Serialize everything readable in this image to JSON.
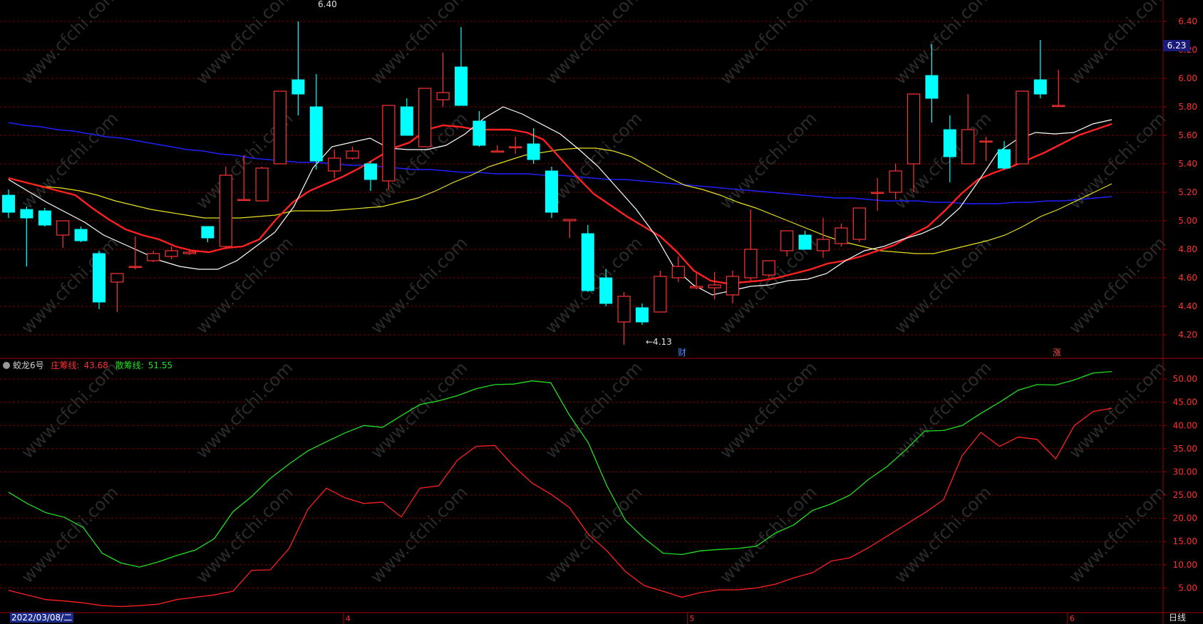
{
  "indicator": {
    "name": "蛟龙6号",
    "zhuang_label": "庄筹线:",
    "zhuang_value": "43.68",
    "san_label": "散筹线:",
    "san_value": "51.55"
  },
  "footer": {
    "date": "2022/03/08/二",
    "period": "日线"
  },
  "price_axis_ticks": [
    "6.40",
    "6.20",
    "6.00",
    "5.80",
    "5.60",
    "5.40",
    "5.20",
    "5.00",
    "4.80",
    "4.60",
    "4.40",
    "4.20"
  ],
  "indicator_axis_ticks": [
    "50.00",
    "45.00",
    "40.00",
    "35.00",
    "30.00",
    "25.00",
    "20.00",
    "15.00",
    "10.00",
    "5.00"
  ],
  "current_price": "6.23",
  "annotations": {
    "high_label": "6.40",
    "low_label": "←4.13",
    "marker_cai": "财",
    "marker_zhang": "涨"
  },
  "month_labels": [
    "3",
    "4",
    "5",
    "6"
  ],
  "colors": {
    "up": "#ff3232",
    "down": "#00ffff",
    "ma5": "#ffffff",
    "ma10": "#ff2020",
    "ma20": "#e8e020",
    "ma60": "#2020ff",
    "zhuang": "#ff2020",
    "san": "#20e020",
    "grid": "#7a0000"
  },
  "chart_data": [
    {
      "type": "candlestick",
      "title": "",
      "ylim": [
        4.05,
        6.45
      ],
      "candles": [
        {
          "o": 5.18,
          "h": 5.22,
          "l": 5.02,
          "c": 5.06
        },
        {
          "o": 5.08,
          "h": 5.1,
          "l": 4.68,
          "c": 5.02
        },
        {
          "o": 5.07,
          "h": 5.09,
          "l": 4.96,
          "c": 4.97
        },
        {
          "o": 4.9,
          "h": 5.0,
          "l": 4.81,
          "c": 5.0
        },
        {
          "o": 4.94,
          "h": 4.96,
          "l": 4.85,
          "c": 4.86
        },
        {
          "o": 4.77,
          "h": 4.79,
          "l": 4.38,
          "c": 4.43
        },
        {
          "o": 4.57,
          "h": 4.63,
          "l": 4.36,
          "c": 4.63
        },
        {
          "o": 4.68,
          "h": 4.89,
          "l": 4.66,
          "c": 4.68
        },
        {
          "o": 4.72,
          "h": 4.79,
          "l": 4.71,
          "c": 4.77
        },
        {
          "o": 4.75,
          "h": 4.82,
          "l": 4.73,
          "c": 4.79
        },
        {
          "o": 4.77,
          "h": 4.8,
          "l": 4.76,
          "c": 4.78
        },
        {
          "o": 4.96,
          "h": 4.96,
          "l": 4.85,
          "c": 4.88
        },
        {
          "o": 4.82,
          "h": 5.38,
          "l": 4.8,
          "c": 5.32
        },
        {
          "o": 5.15,
          "h": 5.46,
          "l": 5.15,
          "c": 5.15
        },
        {
          "o": 5.14,
          "h": 5.38,
          "l": 5.14,
          "c": 5.37
        },
        {
          "o": 5.4,
          "h": 5.91,
          "l": 5.4,
          "c": 5.91
        },
        {
          "o": 5.99,
          "h": 6.4,
          "l": 5.74,
          "c": 5.89
        },
        {
          "o": 5.8,
          "h": 6.03,
          "l": 5.36,
          "c": 5.42
        },
        {
          "o": 5.35,
          "h": 5.5,
          "l": 5.3,
          "c": 5.44
        },
        {
          "o": 5.44,
          "h": 5.52,
          "l": 5.43,
          "c": 5.49
        },
        {
          "o": 5.4,
          "h": 5.42,
          "l": 5.21,
          "c": 5.29
        },
        {
          "o": 5.28,
          "h": 5.81,
          "l": 5.22,
          "c": 5.81
        },
        {
          "o": 5.8,
          "h": 5.86,
          "l": 5.6,
          "c": 5.6
        },
        {
          "o": 5.52,
          "h": 5.93,
          "l": 5.52,
          "c": 5.93
        },
        {
          "o": 5.85,
          "h": 6.18,
          "l": 5.8,
          "c": 5.9
        },
        {
          "o": 6.08,
          "h": 6.36,
          "l": 5.81,
          "c": 5.81
        },
        {
          "o": 5.7,
          "h": 5.77,
          "l": 5.52,
          "c": 5.53
        },
        {
          "o": 5.49,
          "h": 5.53,
          "l": 5.48,
          "c": 5.49
        },
        {
          "o": 5.52,
          "h": 5.59,
          "l": 5.47,
          "c": 5.52
        },
        {
          "o": 5.54,
          "h": 5.65,
          "l": 5.4,
          "c": 5.43
        },
        {
          "o": 5.35,
          "h": 5.38,
          "l": 5.02,
          "c": 5.06
        },
        {
          "o": 5.0,
          "h": 5.01,
          "l": 4.88,
          "c": 5.01
        },
        {
          "o": 4.91,
          "h": 4.97,
          "l": 4.5,
          "c": 4.51
        },
        {
          "o": 4.6,
          "h": 4.66,
          "l": 4.4,
          "c": 4.42
        },
        {
          "o": 4.29,
          "h": 4.5,
          "l": 4.13,
          "c": 4.47
        },
        {
          "o": 4.39,
          "h": 4.42,
          "l": 4.27,
          "c": 4.29
        },
        {
          "o": 4.36,
          "h": 4.65,
          "l": 4.36,
          "c": 4.61
        },
        {
          "o": 4.6,
          "h": 4.75,
          "l": 4.57,
          "c": 4.68
        },
        {
          "o": 4.53,
          "h": 4.64,
          "l": 4.52,
          "c": 4.54
        },
        {
          "o": 4.53,
          "h": 4.64,
          "l": 4.45,
          "c": 4.55
        },
        {
          "o": 4.48,
          "h": 4.65,
          "l": 4.42,
          "c": 4.61
        },
        {
          "o": 4.6,
          "h": 5.08,
          "l": 4.58,
          "c": 4.8
        },
        {
          "o": 4.62,
          "h": 4.72,
          "l": 4.6,
          "c": 4.72
        },
        {
          "o": 4.79,
          "h": 4.93,
          "l": 4.75,
          "c": 4.93
        },
        {
          "o": 4.9,
          "h": 4.93,
          "l": 4.8,
          "c": 4.8
        },
        {
          "o": 4.79,
          "h": 5.02,
          "l": 4.74,
          "c": 4.87
        },
        {
          "o": 4.84,
          "h": 4.98,
          "l": 4.82,
          "c": 4.95
        },
        {
          "o": 4.87,
          "h": 5.09,
          "l": 4.85,
          "c": 5.09
        },
        {
          "o": 5.2,
          "h": 5.3,
          "l": 5.07,
          "c": 5.2
        },
        {
          "o": 5.2,
          "h": 5.4,
          "l": 5.15,
          "c": 5.35
        },
        {
          "o": 5.4,
          "h": 5.89,
          "l": 5.2,
          "c": 5.89
        },
        {
          "o": 6.02,
          "h": 6.24,
          "l": 5.69,
          "c": 5.86
        },
        {
          "o": 5.64,
          "h": 5.74,
          "l": 5.27,
          "c": 5.45
        },
        {
          "o": 5.4,
          "h": 5.89,
          "l": 5.4,
          "c": 5.64
        },
        {
          "o": 5.56,
          "h": 5.59,
          "l": 5.42,
          "c": 5.56
        },
        {
          "o": 5.5,
          "h": 5.56,
          "l": 5.36,
          "c": 5.37
        },
        {
          "o": 5.4,
          "h": 5.91,
          "l": 5.4,
          "c": 5.91
        },
        {
          "o": 5.99,
          "h": 6.27,
          "l": 5.86,
          "c": 5.89
        },
        {
          "o": 5.81,
          "h": 6.06,
          "l": 5.8,
          "c": 5.81
        }
      ],
      "ma5": [
        5.29,
        5.21,
        5.13,
        5.06,
        4.99,
        4.9,
        4.84,
        4.78,
        4.72,
        4.68,
        4.66,
        4.66,
        4.72,
        4.82,
        4.92,
        5.1,
        5.37,
        5.52,
        5.55,
        5.58,
        5.51,
        5.5,
        5.5,
        5.53,
        5.61,
        5.72,
        5.8,
        5.75,
        5.68,
        5.61,
        5.5,
        5.38,
        5.23,
        5.08,
        4.9,
        4.67,
        4.55,
        4.48,
        4.51,
        4.54,
        4.55,
        4.58,
        4.59,
        4.63,
        4.72,
        4.79,
        4.82,
        4.87,
        4.91,
        4.97,
        5.09,
        5.28,
        5.48,
        5.57,
        5.62,
        5.61,
        5.62,
        5.68,
        5.71
      ],
      "ma10": [
        5.3,
        5.27,
        5.24,
        5.21,
        5.18,
        5.09,
        5.01,
        4.94,
        4.9,
        4.87,
        4.82,
        4.79,
        4.78,
        4.81,
        4.82,
        4.87,
        5.01,
        5.13,
        5.21,
        5.26,
        5.31,
        5.37,
        5.44,
        5.51,
        5.55,
        5.64,
        5.67,
        5.66,
        5.64,
        5.64,
        5.64,
        5.62,
        5.57,
        5.44,
        5.31,
        5.19,
        5.11,
        5.03,
        4.96,
        4.89,
        4.78,
        4.65,
        4.58,
        4.56,
        4.57,
        4.58,
        4.6,
        4.63,
        4.66,
        4.7,
        4.72,
        4.75,
        4.79,
        4.83,
        4.9,
        4.96,
        5.07,
        5.19,
        5.29,
        5.34,
        5.38,
        5.43,
        5.48,
        5.54,
        5.6,
        5.64,
        5.68
      ],
      "ma20": [
        5.3,
        5.27,
        5.24,
        5.23,
        5.21,
        5.18,
        5.14,
        5.11,
        5.08,
        5.06,
        5.04,
        5.02,
        5.02,
        5.02,
        5.03,
        5.04,
        5.07,
        5.07,
        5.07,
        5.08,
        5.09,
        5.1,
        5.13,
        5.16,
        5.21,
        5.27,
        5.32,
        5.38,
        5.42,
        5.46,
        5.48,
        5.5,
        5.51,
        5.51,
        5.49,
        5.45,
        5.38,
        5.31,
        5.25,
        5.22,
        5.18,
        5.13,
        5.09,
        5.04,
        4.99,
        4.94,
        4.89,
        4.85,
        4.82,
        4.79,
        4.78,
        4.77,
        4.77,
        4.8,
        4.83,
        4.86,
        4.9,
        4.96,
        5.03,
        5.08,
        5.14,
        5.2,
        5.26
      ],
      "ma60": [
        5.69,
        5.67,
        5.66,
        5.64,
        5.63,
        5.61,
        5.59,
        5.58,
        5.56,
        5.54,
        5.52,
        5.5,
        5.49,
        5.47,
        5.46,
        5.44,
        5.43,
        5.42,
        5.41,
        5.41,
        5.4,
        5.39,
        5.39,
        5.38,
        5.37,
        5.36,
        5.36,
        5.35,
        5.34,
        5.34,
        5.33,
        5.33,
        5.33,
        5.32,
        5.32,
        5.31,
        5.3,
        5.29,
        5.29,
        5.28,
        5.27,
        5.26,
        5.25,
        5.24,
        5.23,
        5.22,
        5.21,
        5.2,
        5.19,
        5.18,
        5.17,
        5.16,
        5.16,
        5.15,
        5.14,
        5.14,
        5.14,
        5.13,
        5.13,
        5.12,
        5.12,
        5.12,
        5.13,
        5.13,
        5.14,
        5.14,
        5.15,
        5.16,
        5.17
      ]
    },
    {
      "type": "line",
      "title": "",
      "ylim": [
        0,
        54
      ],
      "series": [
        {
          "name": "庄筹线",
          "color": "#ff2020",
          "values": [
            4.5,
            3.5,
            2.5,
            2.2,
            1.8,
            1.2,
            1.0,
            1.2,
            1.5,
            2.5,
            3.0,
            3.5,
            4.3,
            8.8,
            8.9,
            13.5,
            21.9,
            26.5,
            24.4,
            23.2,
            23.5,
            20.3,
            26.5,
            27.0,
            32.5,
            35.5,
            35.7,
            31.3,
            27.6,
            25.2,
            22.3,
            16.6,
            13.0,
            8.5,
            5.5,
            4.3,
            3.0,
            4.0,
            4.6,
            4.6,
            5.0,
            5.8,
            7.2,
            8.3,
            10.8,
            11.5,
            13.7,
            16.2,
            18.7,
            21.2,
            24.0,
            33.5,
            38.5,
            35.5,
            37.5,
            37.0,
            32.8,
            40.0,
            43.0,
            43.7
          ]
        },
        {
          "name": "散筹线",
          "color": "#20e020",
          "values": [
            25.6,
            23.2,
            21.2,
            20.2,
            18.0,
            12.5,
            10.4,
            9.5,
            10.6,
            12.0,
            13.2,
            15.6,
            21.4,
            24.7,
            28.6,
            31.7,
            34.5,
            36.5,
            38.4,
            40.0,
            39.6,
            42.1,
            44.5,
            45.3,
            46.4,
            47.9,
            48.8,
            48.9,
            49.6,
            49.2,
            42.2,
            36.3,
            27.0,
            19.5,
            15.7,
            12.5,
            12.2,
            13.0,
            13.3,
            13.5,
            14.0,
            16.8,
            18.6,
            21.7,
            23.1,
            25.0,
            28.4,
            31.2,
            34.8,
            38.8,
            38.9,
            40.0,
            42.6,
            45.0,
            47.6,
            48.8,
            48.7,
            49.8,
            51.3,
            51.6
          ]
        }
      ]
    }
  ]
}
